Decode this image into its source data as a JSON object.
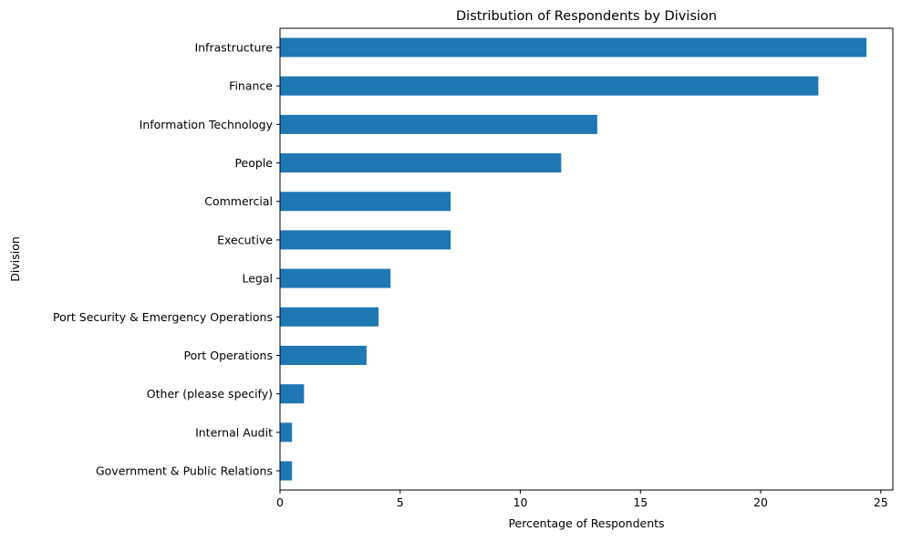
{
  "chart_data": {
    "type": "bar",
    "orientation": "horizontal",
    "title": "Distribution of Respondents by Division",
    "xlabel": "Percentage of Respondents",
    "ylabel": "Division",
    "xlim": [
      0,
      25.5
    ],
    "xticks": [
      0,
      5,
      10,
      15,
      20,
      25
    ],
    "grid": false,
    "legend": "none",
    "bar_color": "#1f77b4",
    "categories": [
      "Infrastructure",
      "Finance",
      "Information Technology",
      "People",
      "Commercial",
      "Executive",
      "Legal",
      "Port Security & Emergency Operations",
      "Port Operations",
      "Other (please specify)",
      "Internal Audit",
      "Government & Public Relations"
    ],
    "values": [
      24.4,
      22.4,
      13.2,
      11.7,
      7.1,
      7.1,
      4.6,
      4.1,
      3.6,
      1.0,
      0.5,
      0.5
    ]
  }
}
